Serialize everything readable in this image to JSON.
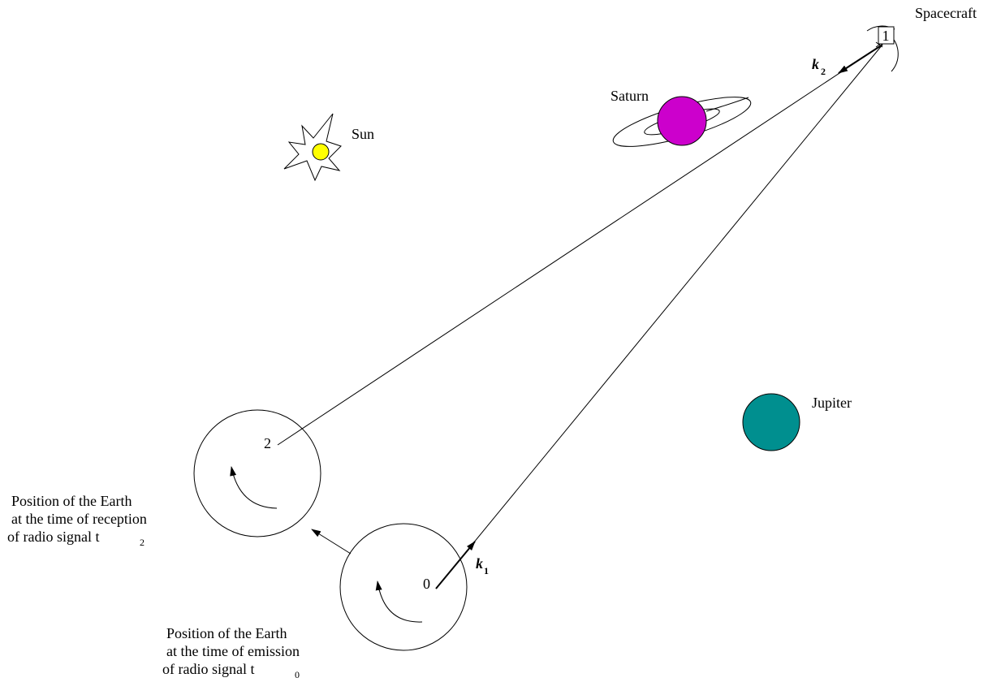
{
  "labels": {
    "spacecraft": "Spacecraft",
    "spacecraft_marker": "1",
    "saturn": "Saturn",
    "sun": "Sun",
    "jupiter": "Jupiter"
  },
  "vectors": [
    {
      "symbol": "k",
      "subscript": "1"
    },
    {
      "symbol": "k",
      "subscript": "2"
    }
  ],
  "earth_positions": [
    {
      "marker": "2",
      "caption": [
        "Position of the Earth",
        "at the time of reception",
        "of radio signal t"
      ],
      "time_subscript": "2"
    },
    {
      "marker": "0",
      "caption": [
        "Position of the Earth",
        "at the time of emission",
        "of radio signal t"
      ],
      "time_subscript": "0"
    }
  ]
}
